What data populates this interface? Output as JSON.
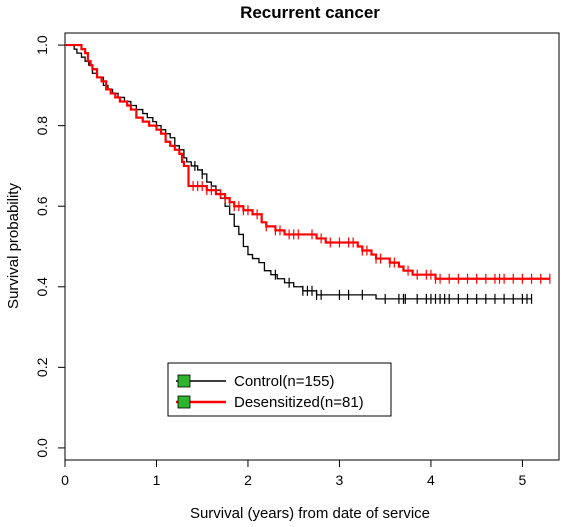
{
  "chart_data": {
    "type": "line",
    "title": "Recurrent cancer",
    "xlabel": "Survival (years) from date of service",
    "ylabel": "Survival probability",
    "xlim": [
      0,
      5.4
    ],
    "ylim": [
      -0.03,
      1.03
    ],
    "xticks": [
      "0",
      "1",
      "2",
      "3",
      "4",
      "5"
    ],
    "yticks": [
      "0.0",
      "0.2",
      "0.4",
      "0.6",
      "0.8",
      "1.0"
    ],
    "legend_position": "bottom-center",
    "grid": false,
    "series": [
      {
        "name": "Control(n=155)",
        "color": "#000000",
        "steps": [
          [
            0,
            1.0
          ],
          [
            0.1,
            0.99
          ],
          [
            0.13,
            0.98
          ],
          [
            0.18,
            0.97
          ],
          [
            0.22,
            0.96
          ],
          [
            0.26,
            0.95
          ],
          [
            0.3,
            0.93
          ],
          [
            0.35,
            0.92
          ],
          [
            0.42,
            0.9
          ],
          [
            0.47,
            0.89
          ],
          [
            0.52,
            0.88
          ],
          [
            0.58,
            0.87
          ],
          [
            0.65,
            0.86
          ],
          [
            0.72,
            0.85
          ],
          [
            0.78,
            0.84
          ],
          [
            0.85,
            0.83
          ],
          [
            0.9,
            0.82
          ],
          [
            0.96,
            0.81
          ],
          [
            1.0,
            0.8
          ],
          [
            1.05,
            0.79
          ],
          [
            1.1,
            0.78
          ],
          [
            1.15,
            0.77
          ],
          [
            1.2,
            0.75
          ],
          [
            1.25,
            0.74
          ],
          [
            1.3,
            0.72
          ],
          [
            1.33,
            0.71
          ],
          [
            1.38,
            0.7
          ],
          [
            1.45,
            0.69
          ],
          [
            1.5,
            0.68
          ],
          [
            1.55,
            0.66
          ],
          [
            1.6,
            0.65
          ],
          [
            1.65,
            0.64
          ],
          [
            1.7,
            0.62
          ],
          [
            1.75,
            0.6
          ],
          [
            1.8,
            0.58
          ],
          [
            1.85,
            0.55
          ],
          [
            1.9,
            0.53
          ],
          [
            1.95,
            0.5
          ],
          [
            2.0,
            0.48
          ],
          [
            2.05,
            0.47
          ],
          [
            2.12,
            0.46
          ],
          [
            2.18,
            0.44
          ],
          [
            2.25,
            0.43
          ],
          [
            2.32,
            0.42
          ],
          [
            2.4,
            0.41
          ],
          [
            2.5,
            0.4
          ],
          [
            2.6,
            0.39
          ],
          [
            2.75,
            0.38
          ],
          [
            3.4,
            0.37
          ],
          [
            5.1,
            0.37
          ]
        ],
        "censor_times": [
          1.42,
          1.5,
          2.3,
          2.45,
          2.6,
          2.65,
          2.7,
          2.75,
          2.8,
          3.0,
          3.1,
          3.25,
          3.5,
          3.65,
          3.7,
          3.72,
          3.85,
          3.95,
          4.0,
          4.05,
          4.1,
          4.15,
          4.2,
          4.3,
          4.4,
          4.5,
          4.6,
          4.7,
          4.8,
          4.9,
          5.0,
          5.05,
          5.1
        ]
      },
      {
        "name": "Desensitized(n=81)",
        "color": "#ff0000",
        "steps": [
          [
            0,
            1.0
          ],
          [
            0.18,
            0.99
          ],
          [
            0.22,
            0.98
          ],
          [
            0.25,
            0.96
          ],
          [
            0.28,
            0.95
          ],
          [
            0.3,
            0.94
          ],
          [
            0.35,
            0.92
          ],
          [
            0.4,
            0.91
          ],
          [
            0.45,
            0.89
          ],
          [
            0.5,
            0.88
          ],
          [
            0.55,
            0.87
          ],
          [
            0.6,
            0.86
          ],
          [
            0.68,
            0.85
          ],
          [
            0.72,
            0.84
          ],
          [
            0.78,
            0.82
          ],
          [
            0.85,
            0.81
          ],
          [
            0.92,
            0.8
          ],
          [
            1.0,
            0.79
          ],
          [
            1.05,
            0.78
          ],
          [
            1.1,
            0.76
          ],
          [
            1.15,
            0.75
          ],
          [
            1.2,
            0.74
          ],
          [
            1.25,
            0.73
          ],
          [
            1.28,
            0.71
          ],
          [
            1.3,
            0.7
          ],
          [
            1.35,
            0.65
          ],
          [
            1.55,
            0.64
          ],
          [
            1.65,
            0.63
          ],
          [
            1.75,
            0.62
          ],
          [
            1.8,
            0.61
          ],
          [
            1.85,
            0.6
          ],
          [
            1.95,
            0.59
          ],
          [
            2.05,
            0.58
          ],
          [
            2.15,
            0.56
          ],
          [
            2.2,
            0.55
          ],
          [
            2.3,
            0.54
          ],
          [
            2.4,
            0.53
          ],
          [
            2.75,
            0.52
          ],
          [
            2.85,
            0.51
          ],
          [
            3.2,
            0.5
          ],
          [
            3.25,
            0.49
          ],
          [
            3.35,
            0.48
          ],
          [
            3.4,
            0.47
          ],
          [
            3.55,
            0.46
          ],
          [
            3.65,
            0.45
          ],
          [
            3.7,
            0.44
          ],
          [
            3.8,
            0.43
          ],
          [
            4.05,
            0.42
          ],
          [
            5.3,
            0.42
          ]
        ],
        "censor_times": [
          1.4,
          1.45,
          1.5,
          1.55,
          1.6,
          1.7,
          1.75,
          1.8,
          1.85,
          1.9,
          1.95,
          2.0,
          2.1,
          2.2,
          2.3,
          2.35,
          2.45,
          2.5,
          2.55,
          2.7,
          2.8,
          2.9,
          3.0,
          3.1,
          3.15,
          3.25,
          3.3,
          3.4,
          3.45,
          3.55,
          3.6,
          3.75,
          3.85,
          3.95,
          4.0,
          4.05,
          4.1,
          4.2,
          4.3,
          4.4,
          4.5,
          4.6,
          4.7,
          4.75,
          4.8,
          4.9,
          5.0,
          5.1,
          5.2,
          5.3
        ]
      }
    ]
  }
}
